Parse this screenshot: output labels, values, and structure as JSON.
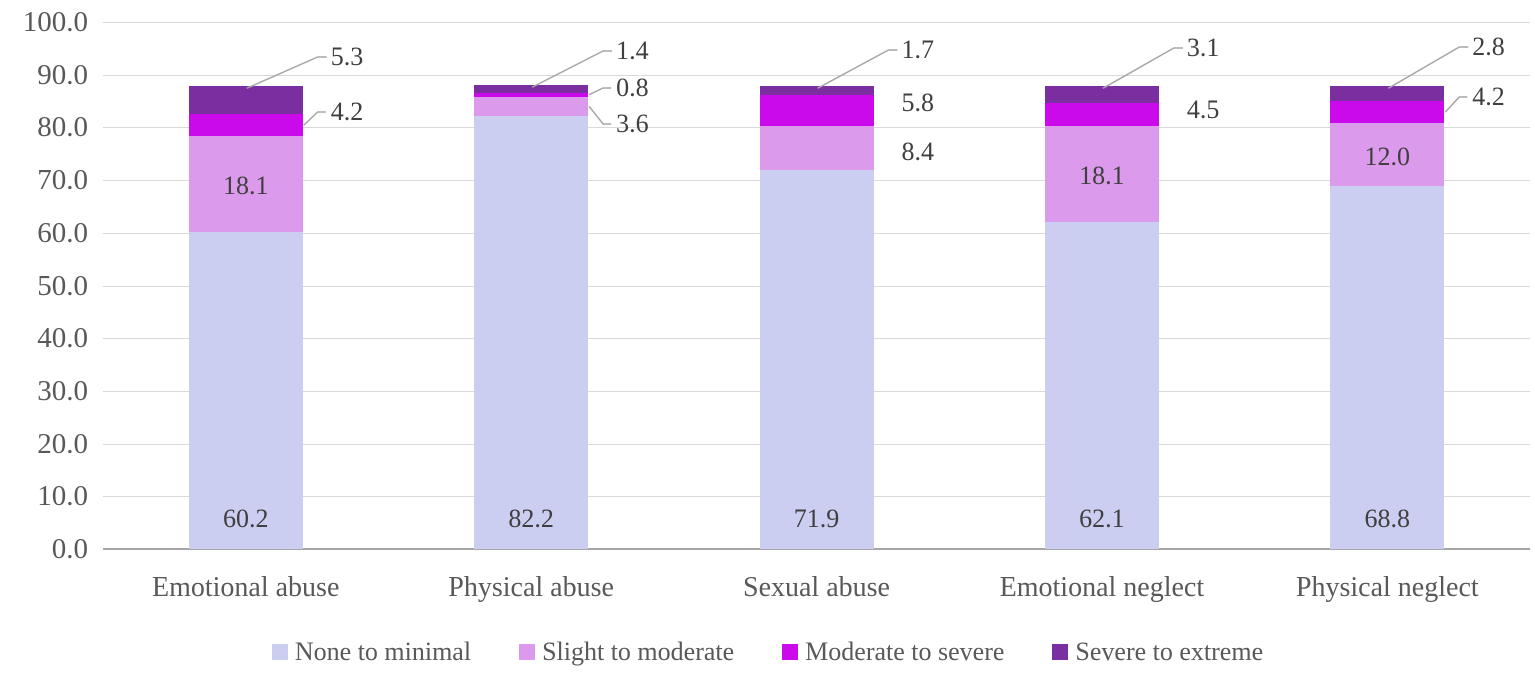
{
  "chart_data": {
    "type": "bar",
    "subtype": "stacked-column",
    "title": "",
    "categories": [
      "Emotional abuse",
      "Physical abuse",
      "Sexual abuse",
      "Emotional neglect",
      "Physical neglect"
    ],
    "series": [
      {
        "name": "None to minimal",
        "color": "#CBCDF1",
        "values": [
          60.2,
          82.2,
          71.9,
          62.1,
          68.8
        ],
        "labels": [
          "60.2",
          "82.2",
          "71.9",
          "62.1",
          "68.8"
        ]
      },
      {
        "name": "Slight to moderate",
        "color": "#DC9AEC",
        "values": [
          18.1,
          3.6,
          8.4,
          18.1,
          12.0
        ],
        "labels": [
          "18.1",
          "3.6",
          "8.4",
          "18.1",
          "12.0"
        ]
      },
      {
        "name": "Moderate to severe",
        "color": "#CB0AEB",
        "values": [
          4.2,
          0.8,
          5.8,
          4.5,
          4.2
        ],
        "labels": [
          "4.2",
          "0.8",
          "5.8",
          "4.5",
          "4.2"
        ]
      },
      {
        "name": "Severe to extreme",
        "color": "#7B2E9F",
        "values": [
          5.3,
          1.4,
          1.7,
          3.1,
          2.8
        ],
        "labels": [
          "5.3",
          "1.4",
          "1.7",
          "3.1",
          "2.8"
        ]
      }
    ],
    "y_ticks": [
      "100.0",
      "90.0",
      "80.0",
      "70.0",
      "60.0",
      "50.0",
      "40.0",
      "30.0",
      "20.0",
      "10.0",
      "0.0"
    ],
    "ylim": [
      0,
      100
    ],
    "grid": true,
    "legend_position": "bottom",
    "annotations": [
      {
        "bar": 0,
        "series": 2,
        "type": "elbow",
        "y": 112
      },
      {
        "bar": 0,
        "series": 3,
        "type": "diag",
        "y": 57
      },
      {
        "bar": 1,
        "series": 1,
        "type": "elbow",
        "y": 124
      },
      {
        "bar": 1,
        "series": 2,
        "type": "elbow",
        "y": 88
      },
      {
        "bar": 1,
        "series": 3,
        "type": "diag",
        "y": 51
      },
      {
        "bar": 2,
        "series": 1,
        "type": "side",
        "y": 152
      },
      {
        "bar": 2,
        "series": 2,
        "type": "side",
        "y": 103
      },
      {
        "bar": 2,
        "series": 3,
        "type": "diag",
        "y": 50
      },
      {
        "bar": 3,
        "series": 2,
        "type": "side",
        "y": 110
      },
      {
        "bar": 3,
        "series": 3,
        "type": "diag",
        "y": 48
      },
      {
        "bar": 4,
        "series": 2,
        "type": "elbow",
        "y": 97
      },
      {
        "bar": 4,
        "series": 3,
        "type": "diag",
        "y": 47
      }
    ]
  },
  "colors": {
    "gridline": "#D9D9D9",
    "axis_line": "#A6A6A6",
    "leader_line": "#A6A6A6",
    "tick_text": "#595959",
    "data_label_text": "#3F3F3F"
  }
}
